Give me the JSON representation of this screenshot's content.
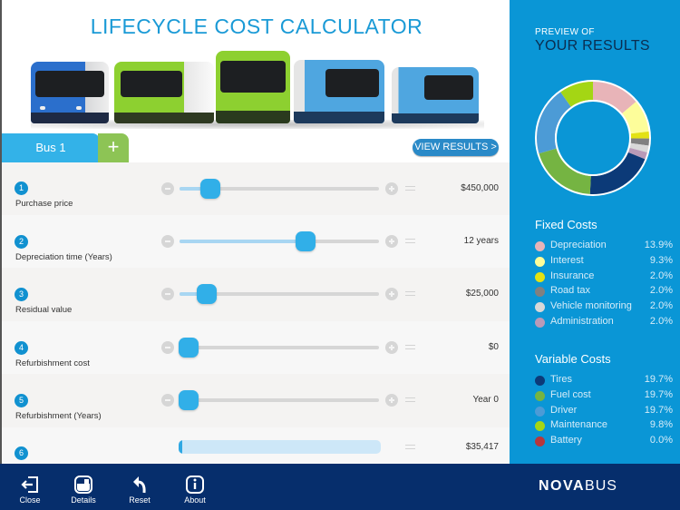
{
  "header": {
    "title": "LIFECYCLE COST CALCULATOR"
  },
  "tabs": {
    "active_label": "Bus 1",
    "add_label": "+"
  },
  "view_results_label": "VIEW RESULTS >",
  "inputs": [
    {
      "number": "1",
      "label": "Purchase price",
      "value": "$450,000",
      "fill_pct": 15
    },
    {
      "number": "2",
      "label": "Depreciation time (Years)",
      "value": "12  years",
      "fill_pct": 63
    },
    {
      "number": "3",
      "label": "Residual value",
      "value": "$25,000",
      "fill_pct": 13
    },
    {
      "number": "4",
      "label": "Refurbishment cost",
      "value": "$0",
      "fill_pct": 0
    },
    {
      "number": "5",
      "label": "Refurbishment (Years)",
      "value": "Year 0",
      "fill_pct": 0
    },
    {
      "number": "6",
      "label": "",
      "value": "$35,417",
      "fill_pct": 2
    }
  ],
  "sidebar": {
    "preview_label": "PREVIEW OF",
    "results_label": "YOUR RESULTS",
    "fixed_title": "Fixed Costs",
    "variable_title": "Variable Costs",
    "fixed": [
      {
        "name": "Depreciation",
        "pct": "13.9%",
        "color": "#e8b4b8"
      },
      {
        "name": "Interest",
        "pct": "9.3%",
        "color": "#fdfd9a"
      },
      {
        "name": "Insurance",
        "pct": "2.0%",
        "color": "#e3e214"
      },
      {
        "name": "Road tax",
        "pct": "2.0%",
        "color": "#808080"
      },
      {
        "name": "Vehicle monitoring",
        "pct": "2.0%",
        "color": "#d8d8d8"
      },
      {
        "name": "Administration",
        "pct": "2.0%",
        "color": "#b99ab8"
      }
    ],
    "variable": [
      {
        "name": "Tires",
        "pct": "19.7%",
        "color": "#0c3a78"
      },
      {
        "name": "Fuel cost",
        "pct": "19.7%",
        "color": "#75b442"
      },
      {
        "name": "Driver",
        "pct": "19.7%",
        "color": "#4c9bd6"
      },
      {
        "name": "Maintenance",
        "pct": "9.8%",
        "color": "#a4d614"
      },
      {
        "name": "Battery",
        "pct": "0.0%",
        "color": "#b8363b"
      }
    ]
  },
  "toolbar": {
    "items": [
      {
        "label": "Close",
        "icon": "close-icon"
      },
      {
        "label": "Details",
        "icon": "details-icon"
      },
      {
        "label": "Reset",
        "icon": "reset-icon"
      },
      {
        "label": "About",
        "icon": "about-icon"
      }
    ],
    "logo_bold": "NOVA",
    "logo_light": "BUS"
  },
  "colors": {
    "accent": "#1a9ad6",
    "panel": "#0a96d6",
    "toolbar": "#062e6c",
    "tab_active": "#33b2e8",
    "tab_add": "#8dc455",
    "slider_thumb": "#31afe8"
  }
}
